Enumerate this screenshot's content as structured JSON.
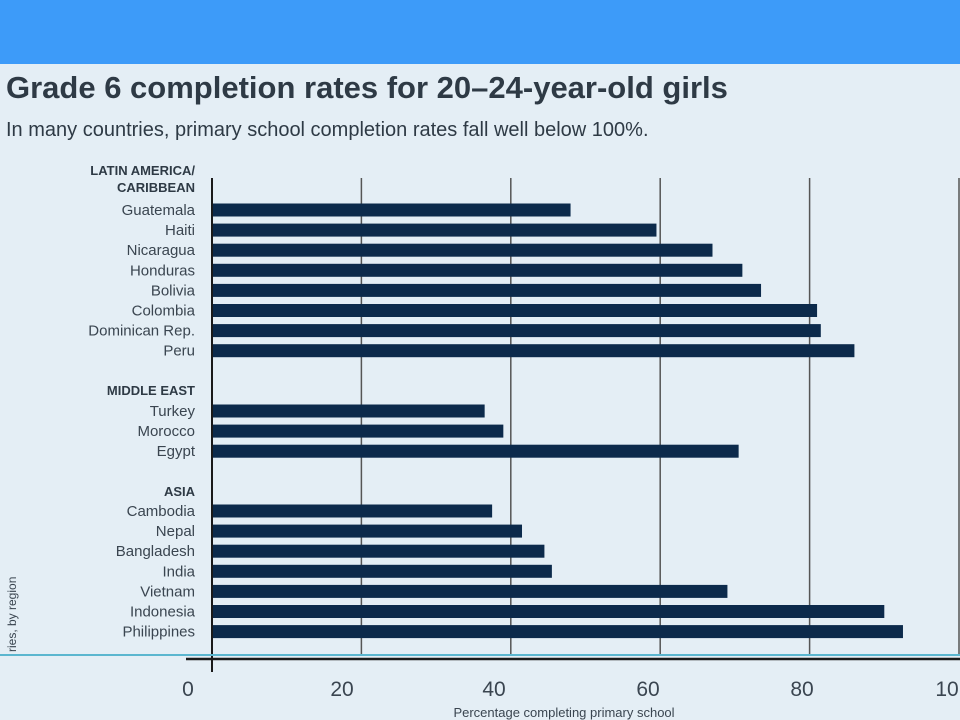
{
  "title": "Grade 6 completion rates for 20–24-year-old girls",
  "subtitle": "In many countries, primary school completion rates fall well below 100%.",
  "side_label": "ries, by region",
  "colors": {
    "bar": "#0c2a4b",
    "band": "#3d9bf9",
    "background": "#e4eef5",
    "grid": "#555555"
  },
  "chart_data": {
    "type": "bar",
    "orientation": "horizontal",
    "title": "Grade 6 completion rates for 20–24-year-old girls",
    "subtitle": "In many countries, primary school completion rates fall well below 100%.",
    "xlabel": "Percentage completing primary school",
    "xlim": [
      0,
      100
    ],
    "xticks": [
      "0",
      "20",
      "40",
      "60",
      "80",
      "10"
    ],
    "grid": true,
    "groups": [
      {
        "name": "LATIN AMERICA/ CARIBBEAN",
        "name_lines": [
          "LATIN AMERICA/",
          "CARIBBEAN"
        ],
        "items": [
          {
            "label": "Guatemala",
            "value": 48
          },
          {
            "label": "Haiti",
            "value": 59.5
          },
          {
            "label": "Nicaragua",
            "value": 67
          },
          {
            "label": "Honduras",
            "value": 71
          },
          {
            "label": "Bolivia",
            "value": 73.5
          },
          {
            "label": "Colombia",
            "value": 81
          },
          {
            "label": "Dominican Rep.",
            "value": 81.5
          },
          {
            "label": "Peru",
            "value": 86
          }
        ]
      },
      {
        "name": "MIDDLE EAST",
        "name_lines": [
          "MIDDLE EAST"
        ],
        "items": [
          {
            "label": "Turkey",
            "value": 36.5
          },
          {
            "label": "Morocco",
            "value": 39
          },
          {
            "label": "Egypt",
            "value": 70.5
          }
        ]
      },
      {
        "name": "ASIA",
        "name_lines": [
          "ASIA"
        ],
        "items": [
          {
            "label": "Cambodia",
            "value": 37.5
          },
          {
            "label": "Nepal",
            "value": 41.5
          },
          {
            "label": "Bangladesh",
            "value": 44.5
          },
          {
            "label": "India",
            "value": 45.5
          },
          {
            "label": "Vietnam",
            "value": 69
          },
          {
            "label": "Indonesia",
            "value": 90
          },
          {
            "label": "Philippines",
            "value": 92.5
          }
        ]
      }
    ]
  }
}
